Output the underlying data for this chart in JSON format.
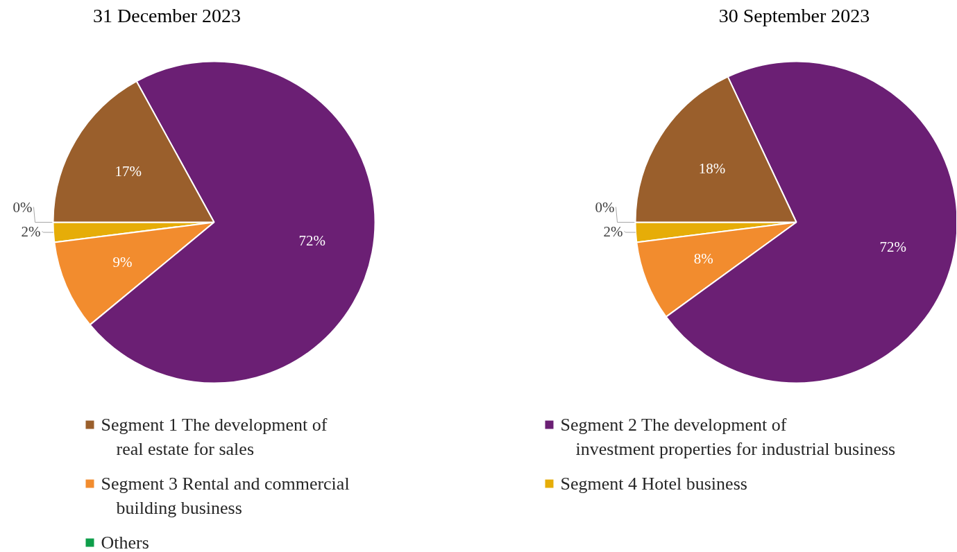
{
  "chart_data": [
    {
      "type": "pie",
      "title": "31 December 2023",
      "categories": [
        "Segment 1 The development of\nreal estate for sales",
        "Segment 2 The development of\ninvestment properties for industrial business",
        "Segment 3 Rental and commercial\nbuilding business",
        "Segment 4 Hotel business",
        "Others"
      ],
      "values": [
        17,
        72,
        9,
        2,
        0
      ],
      "value_labels": [
        "17%",
        "72%",
        "9%",
        "2%",
        "0%"
      ],
      "colors": [
        "#9a5f2c",
        "#6b1f74",
        "#f28c2e",
        "#e6ad08",
        "#0e9e4a"
      ],
      "legend": "bottom"
    },
    {
      "type": "pie",
      "title": "30 September 2023",
      "categories": [
        null,
        null,
        null,
        null,
        null
      ],
      "values": [
        18,
        72,
        8,
        2,
        0
      ],
      "value_labels": [
        "18%",
        "72%",
        "8%",
        "2%",
        "0%"
      ],
      "colors": [
        "#9a5f2c",
        "#6b1f74",
        "#f28c2e",
        "#e6ad08",
        "#0e9e4a"
      ]
    }
  ]
}
